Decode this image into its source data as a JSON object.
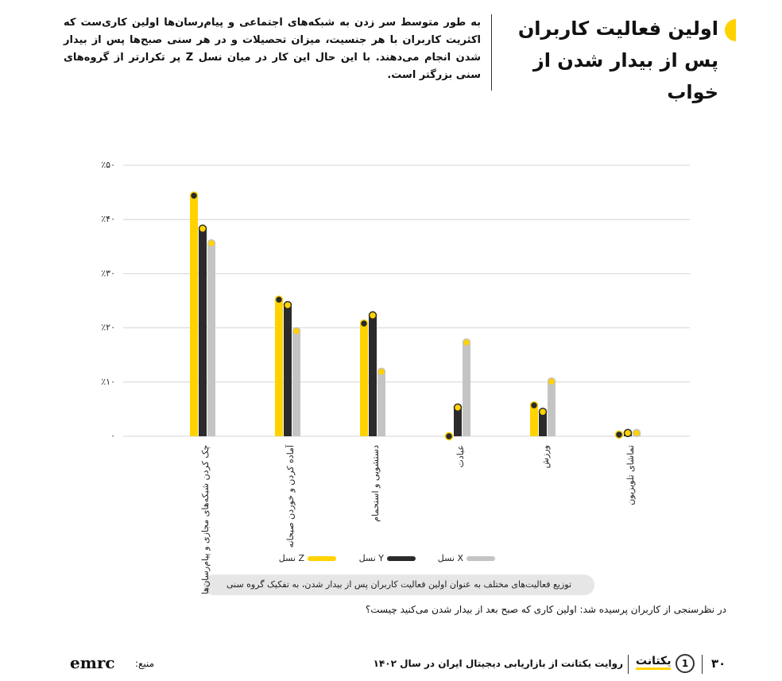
{
  "header": {
    "title": "اولین فعالیت کاربران پس از بیدار شدن از خواب",
    "intro": "به طور متوسط سر زدن به شبکه‌های اجتماعی و پیام‌رسان‌ها اولین کاری‌ست که اکثریت کاربران با هر جنسیت، میزان تحصیلات و در هر سنی صبح‌ها پس از بیدار شدن انجام می‌دهند. با این حال این کار در میان نسل Z پر تکرارتر از گروه‌های سنی بزرگتر است."
  },
  "chart_data": {
    "type": "bar",
    "caption": "توزیع فعالیت‌های مختلف به عنوان اولین فعالیت کاربران پس از بیدار شدن، به تفکیک گروه سنی",
    "question": "در نظرسنجی از کاربران پرسیده شد: اولین کاری که صبح بعد از بیدار شدن می‌کنید چیست؟",
    "categories": [
      "چک کردن شبکه‌های مجازی و پیام‌رسان‌ها",
      "آماده کردن و خوردن صبحانه",
      "دستشویی و استحمام",
      "عبادت",
      "ورزش",
      "تماشای تلویزیون"
    ],
    "series": [
      {
        "name": "نسل Z",
        "color": "#ffd200",
        "dot_color": "#2b2b2b",
        "values": [
          44.4,
          25.2,
          20.8,
          0,
          5.7,
          0.3
        ]
      },
      {
        "name": "نسل Y",
        "color": "#2b2b2b",
        "dot_color": "#ffd200",
        "values": [
          38.3,
          24.2,
          22.3,
          5.3,
          4.5,
          0.6
        ]
      },
      {
        "name": "نسل X",
        "color": "#c4c4c4",
        "dot_color": "#ffd200",
        "values": [
          35.6,
          19.4,
          11.9,
          17.3,
          10.1,
          0.6
        ]
      }
    ],
    "ylim": [
      0,
      50
    ],
    "yticks": [
      {
        "value": 0,
        "label": "۰"
      },
      {
        "value": 10,
        "label": "٪۱۰"
      },
      {
        "value": 20,
        "label": "٪۲۰"
      },
      {
        "value": 30,
        "label": "٪۳۰"
      },
      {
        "value": 40,
        "label": "٪۴۰"
      },
      {
        "value": 50,
        "label": "٪۵۰"
      }
    ],
    "grid": true
  },
  "footer": {
    "page": "۳۰",
    "badge": "1",
    "logo": "یکتانت",
    "text": "روایت یکتانت از بازاریابی دیجیتال ایران در سال ۱۴۰۲",
    "source_label": "منبع:",
    "source": "emrc"
  }
}
